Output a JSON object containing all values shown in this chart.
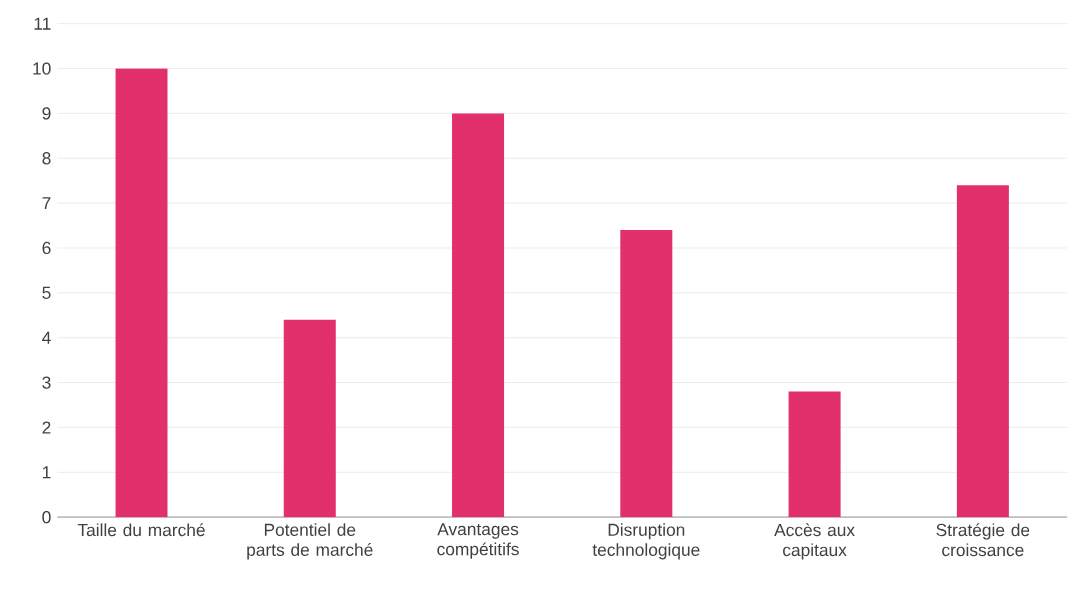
{
  "chart_data": {
    "type": "bar",
    "categories": [
      "Taille du marché",
      "Potentiel de parts de marché",
      "Avantages compétitifs",
      "Disruption technologique",
      "Accès aux capitaux",
      "Stratégie de croissance"
    ],
    "values": [
      10,
      4.4,
      9,
      6.4,
      2.8,
      7.4
    ],
    "color": "#e2306c",
    "ylim": [
      0,
      11
    ],
    "yticks": [
      0,
      1,
      2,
      3,
      4,
      5,
      6,
      7,
      8,
      9,
      10,
      11
    ],
    "grid": "y"
  }
}
